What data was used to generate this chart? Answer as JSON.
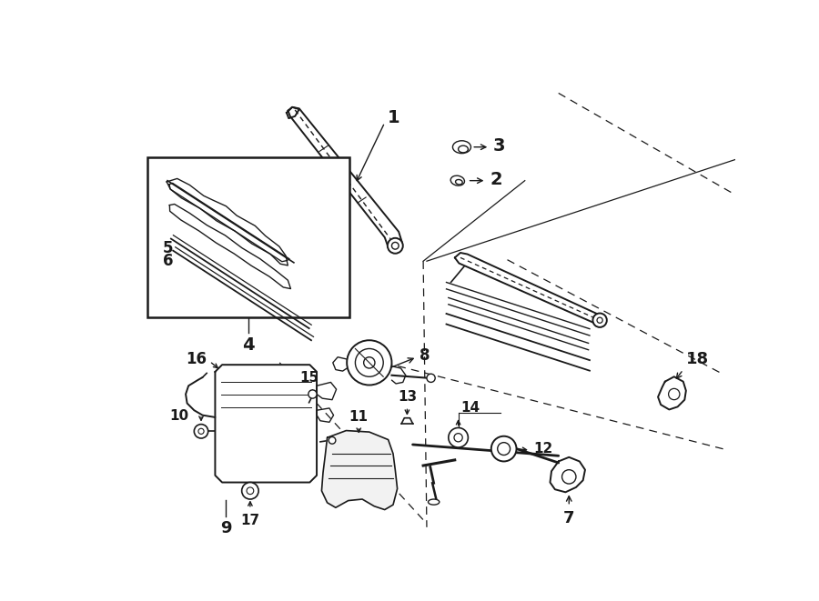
{
  "bg_color": "#ffffff",
  "line_color": "#1a1a1a",
  "label_fontsize": 13,
  "small_fontsize": 11,
  "dashed_lines": [
    [
      [
        648,
        30
      ],
      [
        900,
        175
      ]
    ],
    [
      [
        575,
        268
      ],
      [
        880,
        430
      ]
    ],
    [
      [
        400,
        415
      ],
      [
        890,
        540
      ]
    ],
    [
      [
        250,
        415
      ],
      [
        460,
        645
      ]
    ]
  ],
  "solid_bg_lines": [
    [
      [
        455,
        270
      ],
      [
        600,
        155
      ]
    ],
    [
      [
        455,
        270
      ],
      [
        455,
        655
      ]
    ]
  ]
}
